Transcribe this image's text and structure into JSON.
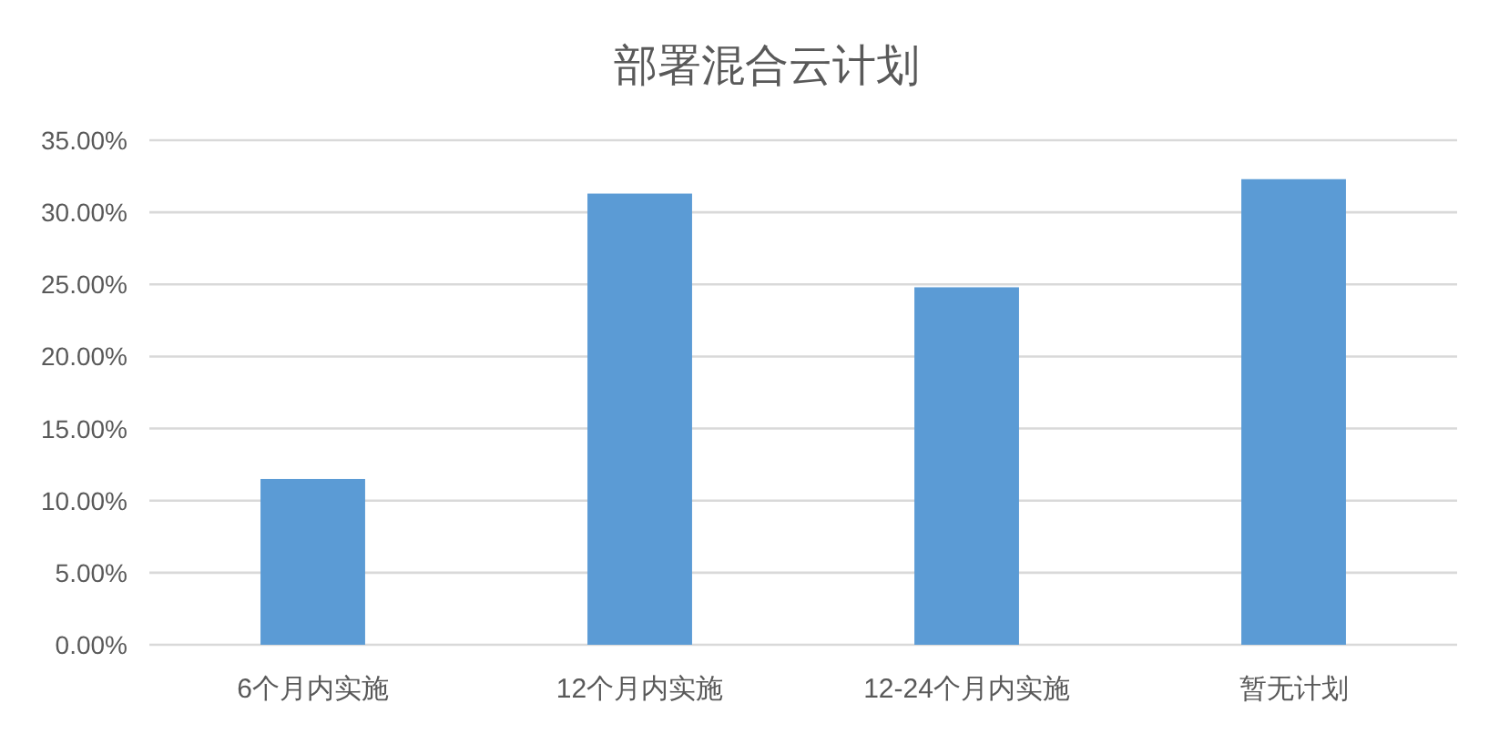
{
  "chart_data": {
    "type": "bar",
    "title": "部署混合云计划",
    "categories": [
      "6个月内实施",
      "12个月内实施",
      "12-24个月内实施",
      "暂无计划"
    ],
    "values": [
      11.5,
      31.3,
      24.8,
      32.3
    ],
    "color": "#5b9bd5",
    "ylim": [
      0,
      35
    ],
    "yticks": [
      {
        "value": 0,
        "label": "0.00%"
      },
      {
        "value": 5,
        "label": "5.00%"
      },
      {
        "value": 10,
        "label": "10.00%"
      },
      {
        "value": 15,
        "label": "15.00%"
      },
      {
        "value": 20,
        "label": "20.00%"
      },
      {
        "value": 25,
        "label": "25.00%"
      },
      {
        "value": 30,
        "label": "30.00%"
      },
      {
        "value": 35,
        "label": "35.00%"
      }
    ],
    "grid": "y"
  }
}
